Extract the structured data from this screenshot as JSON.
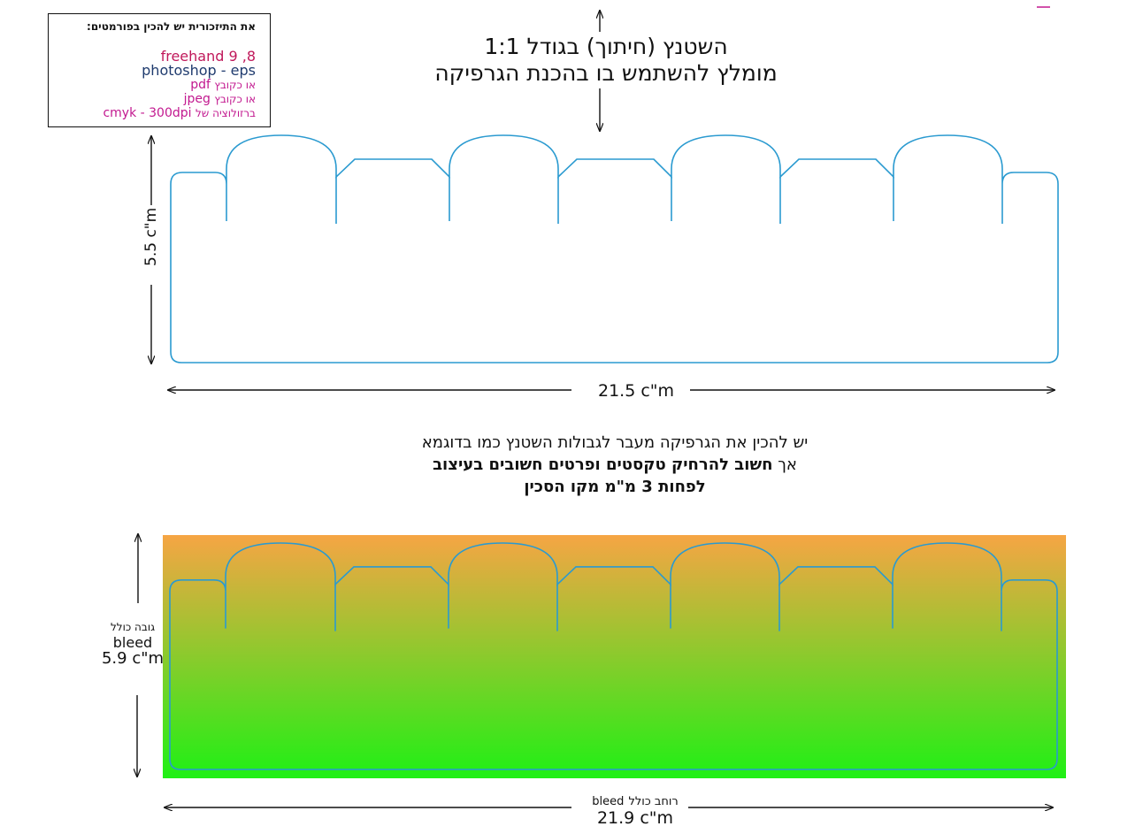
{
  "formats_box": {
    "title": "את התיזכורית יש להכין בפורמטים:",
    "line1": "freehand 9 ,8",
    "line2": "photoshop - eps",
    "line3_prefix": "או כקובץ",
    "line3_value": "pdf",
    "line4_prefix": "או כקובץ",
    "line4_value": "jpeg",
    "line5_prefix": "ברזולוציה של",
    "line5_value": "cmyk - 300dpi"
  },
  "header": {
    "line1": "השטנץ (חיתוך) בגודל 1:1",
    "line2": "מומלץ להשתמש בו בהכנת הגרפיקה"
  },
  "top_die": {
    "width_label": "21.5 c\"m",
    "height_label": "5.5 c\"m"
  },
  "note": {
    "line1": "יש להכין את הגרפיקה מעבר לגבולות השטנץ כמו בדוגמא",
    "line2_normal": "אך",
    "line2_bold": "חשוב להרחיק טקסטים ופרטים חשובים בעיצוב",
    "line3": "לפחות 3 מ\"מ מקו הסכין"
  },
  "bleed_die": {
    "height_caption": "גובה כולל",
    "height_bleed_word": "bleed",
    "height_value": "5.9 c\"m",
    "width_caption": "רוחב כולל",
    "width_bleed_word": "bleed",
    "width_value": "21.9 c\"m"
  },
  "colors": {
    "die_line": "#2a9ad0",
    "gradient_top": "#f6a544",
    "gradient_bottom": "#1ff015",
    "arrow": "#111111",
    "accent_mark": "#c2188f"
  }
}
